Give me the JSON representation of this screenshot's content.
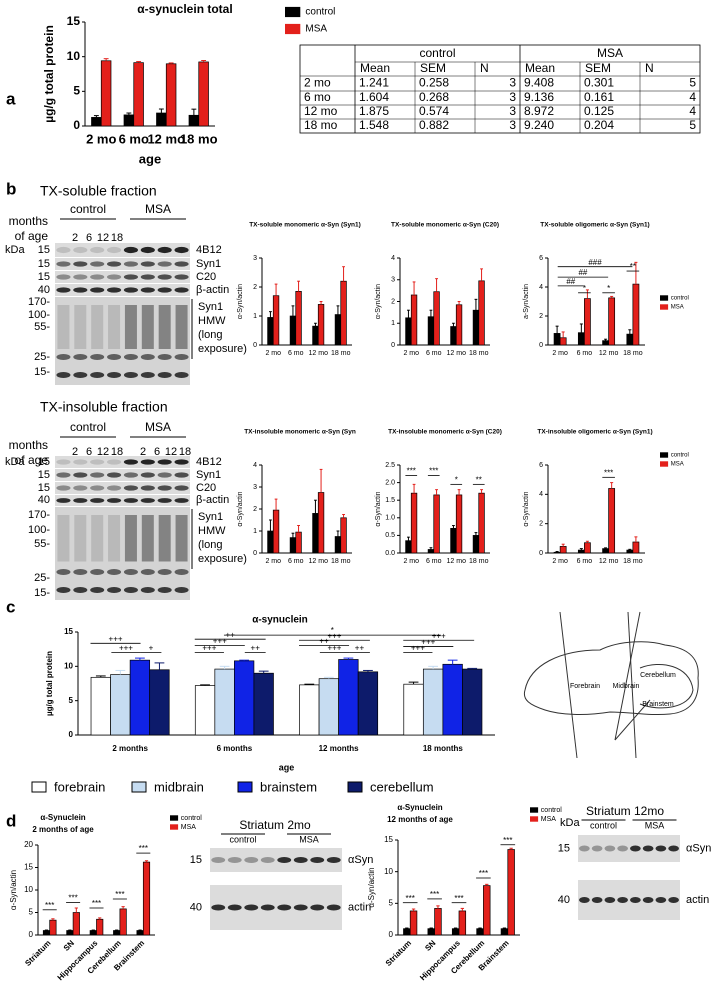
{
  "panel_labels": [
    "a",
    "b",
    "c",
    "d"
  ],
  "chart_data": [
    {
      "type": "bar",
      "title": "α-synuclein total",
      "y_label": "µg/g total protein",
      "x_label": "age",
      "categories": [
        "2 mo",
        "6 mo",
        "12 mo",
        "18 mo"
      ],
      "series": [
        {
          "name": "control",
          "color": "#000000",
          "values": [
            1.241,
            1.604,
            1.875,
            1.548
          ],
          "errors": [
            0.258,
            0.268,
            0.574,
            0.882
          ]
        },
        {
          "name": "MSA",
          "color": "#e3201b",
          "values": [
            9.408,
            9.136,
            8.972,
            9.24
          ],
          "errors": [
            0.301,
            0.161,
            0.125,
            0.204
          ]
        }
      ],
      "ylim": [
        0,
        15
      ],
      "yticks": [
        0,
        5,
        10,
        15
      ],
      "legend": true
    },
    {
      "type": "bar",
      "title": "TX-soluble monomeric α-Syn (Syn1)",
      "y_label": "α-Syn/actin",
      "categories": [
        "2 mo",
        "6 mo",
        "12 mo",
        "18 mo"
      ],
      "series": [
        {
          "name": "control",
          "color": "#000000",
          "values": [
            0.95,
            1.0,
            0.65,
            1.05
          ],
          "errors": [
            0.2,
            0.35,
            0.1,
            0.3
          ]
        },
        {
          "name": "MSA",
          "color": "#e3201b",
          "values": [
            1.7,
            1.85,
            1.4,
            2.2
          ],
          "errors": [
            0.4,
            0.35,
            0.1,
            0.5
          ]
        }
      ],
      "ylim": [
        0,
        3
      ],
      "yticks": [
        0,
        1,
        2,
        3
      ]
    },
    {
      "type": "bar",
      "title": "TX-soluble monomeric α-Syn (C20)",
      "y_label": "α-Syn/actin",
      "categories": [
        "2 mo",
        "6 mo",
        "12 mo",
        "18 mo"
      ],
      "series": [
        {
          "name": "control",
          "color": "#000000",
          "values": [
            1.25,
            1.3,
            0.85,
            1.6
          ],
          "errors": [
            0.35,
            0.3,
            0.15,
            0.5
          ]
        },
        {
          "name": "MSA",
          "color": "#e3201b",
          "values": [
            2.3,
            2.45,
            1.85,
            2.95
          ],
          "errors": [
            0.6,
            0.6,
            0.15,
            0.55
          ]
        }
      ],
      "ylim": [
        0,
        4
      ],
      "yticks": [
        0,
        1,
        2,
        3,
        4
      ]
    },
    {
      "type": "bar",
      "title": "TX-soluble oligomeric α-Syn (Syn1)",
      "y_label": "a-Syn/actin",
      "categories": [
        "2 mo",
        "6 mo",
        "12 mo",
        "18 mo"
      ],
      "series": [
        {
          "name": "control",
          "color": "#000000",
          "values": [
            0.8,
            0.85,
            0.3,
            0.75
          ],
          "errors": [
            0.5,
            0.6,
            0.1,
            0.3
          ]
        },
        {
          "name": "MSA",
          "color": "#e3201b",
          "values": [
            0.5,
            3.2,
            3.25,
            4.2
          ],
          "errors": [
            0.4,
            0.6,
            0.1,
            1.5
          ]
        }
      ],
      "ylim": [
        0,
        6
      ],
      "yticks": [
        0,
        2,
        4,
        6
      ],
      "legend": true,
      "annotations": [
        "###",
        "##",
        "##",
        "*",
        "*",
        "**"
      ]
    },
    {
      "type": "bar",
      "title": "TX-insoluble monomeric α-Syn (Syn",
      "y_label": "α-Syn/actin",
      "categories": [
        "2 mo",
        "6 mo",
        "12 mo",
        "18 mo"
      ],
      "series": [
        {
          "name": "control",
          "color": "#000000",
          "values": [
            1.0,
            0.7,
            1.8,
            0.75
          ],
          "errors": [
            0.5,
            0.2,
            0.6,
            0.25
          ]
        },
        {
          "name": "MSA",
          "color": "#e3201b",
          "values": [
            1.95,
            0.95,
            2.75,
            1.6
          ],
          "errors": [
            0.5,
            0.3,
            1.05,
            0.15
          ]
        }
      ],
      "ylim": [
        0,
        4
      ],
      "yticks": [
        0,
        1,
        2,
        3,
        4
      ]
    },
    {
      "type": "bar",
      "title": "TX-insoluble monomeric α-Syn (C20)",
      "y_label": "α-Syn/actin",
      "categories": [
        "2 mo",
        "6 mo",
        "12 mo",
        "18 mo"
      ],
      "series": [
        {
          "name": "control",
          "color": "#000000",
          "values": [
            0.35,
            0.1,
            0.7,
            0.5
          ],
          "errors": [
            0.1,
            0.05,
            0.08,
            0.08
          ]
        },
        {
          "name": "MSA",
          "color": "#e3201b",
          "values": [
            1.7,
            1.65,
            1.65,
            1.7
          ],
          "errors": [
            0.25,
            0.15,
            0.15,
            0.1
          ]
        }
      ],
      "ylim": [
        0,
        2.5
      ],
      "yticks": [
        {
          "value": 0,
          "label": "0.0"
        },
        {
          "value": 0.5,
          "label": "0.5"
        },
        {
          "value": 1,
          "label": "1.0"
        },
        {
          "value": 1.5,
          "label": "1.5"
        },
        {
          "value": 2,
          "label": "2.0"
        },
        {
          "value": 2.5,
          "label": "2.5"
        }
      ],
      "annotations": [
        "***",
        "***",
        "*",
        "**"
      ]
    },
    {
      "type": "bar",
      "title": "TX-insoluble oligomeric α-Syn (Syn1)",
      "y_label": "α-Syn/actin",
      "categories": [
        "2 mo",
        "6 mo",
        "12 mo",
        "18 mo"
      ],
      "series": [
        {
          "name": "control",
          "color": "#000000",
          "values": [
            0.05,
            0.2,
            0.3,
            0.2
          ],
          "errors": [
            0.05,
            0.1,
            0.05,
            0.05
          ]
        },
        {
          "name": "MSA",
          "color": "#e3201b",
          "values": [
            0.45,
            0.7,
            4.4,
            0.75
          ],
          "errors": [
            0.15,
            0.1,
            0.4,
            0.35
          ]
        }
      ],
      "ylim": [
        0,
        6
      ],
      "yticks": [
        0,
        2,
        4,
        6
      ],
      "legend": true,
      "annotations": [
        "***"
      ]
    },
    {
      "type": "bar",
      "title": "α-synuclein",
      "y_label": "µg/g total protein",
      "x_label": "age",
      "categories": [
        "2 months",
        "6 months",
        "12 months",
        "18 months"
      ],
      "series": [
        {
          "name": "forebrain",
          "color": "#ffffff",
          "values": [
            8.4,
            7.2,
            7.3,
            7.4
          ],
          "errors": [
            0.2,
            0.1,
            0.1,
            0.3
          ]
        },
        {
          "name": "midbrain",
          "color": "#c6dcf1",
          "values": [
            8.8,
            9.6,
            8.2,
            9.6
          ],
          "errors": [
            0.6,
            0.4,
            0.2,
            0.4
          ]
        },
        {
          "name": "brainstem",
          "color": "#1023e6",
          "values": [
            10.9,
            10.8,
            11.0,
            10.3
          ],
          "errors": [
            0.3,
            0.1,
            0.2,
            0.6
          ]
        },
        {
          "name": "cerebellum",
          "color": "#0d1b6b",
          "values": [
            9.5,
            9.0,
            9.2,
            9.6
          ],
          "errors": [
            1.0,
            0.3,
            0.2,
            0.1
          ]
        }
      ],
      "ylim": [
        0,
        15
      ],
      "yticks": [
        0,
        5,
        10,
        15
      ],
      "annotations": [
        "+++",
        "+++",
        "+",
        "++",
        "+++",
        "+++",
        "++",
        "*",
        "+++",
        "++",
        "+++",
        "++",
        "+++",
        "+++",
        "+++"
      ]
    },
    {
      "type": "bar",
      "title": "α-Synuclein",
      "subtitle": "2 months of age",
      "y_label": "α-Syn/actin",
      "categories": [
        "Striatum",
        "SN",
        "Hippocampus",
        "Cerebellum",
        "Brainstem"
      ],
      "series": [
        {
          "name": "control",
          "color": "#000000",
          "values": [
            1.0,
            1.0,
            1.0,
            1.0,
            1.0
          ],
          "errors": [
            0.1,
            0.1,
            0.1,
            0.1,
            0.1
          ]
        },
        {
          "name": "MSA",
          "color": "#e3201b",
          "values": [
            3.3,
            5.0,
            3.5,
            5.8,
            16.2
          ],
          "errors": [
            0.3,
            1.0,
            0.3,
            0.5,
            0.3
          ]
        }
      ],
      "ylim": [
        0,
        20
      ],
      "yticks": [
        0,
        5,
        10,
        15,
        20
      ],
      "legend": true,
      "annotations": [
        "***",
        "***",
        "***",
        "***",
        "***"
      ]
    },
    {
      "type": "bar",
      "title": "α-Synuclein",
      "subtitle": "12 months of age",
      "y_label": "α-Syn/actin",
      "categories": [
        "Striatum",
        "SN",
        "Hippocampus",
        "Cerebellum",
        "Brainstem"
      ],
      "series": [
        {
          "name": "control",
          "color": "#000000",
          "values": [
            1.0,
            1.0,
            1.0,
            1.0,
            1.0
          ],
          "errors": [
            0.1,
            0.1,
            0.1,
            0.1,
            0.1
          ]
        },
        {
          "name": "MSA",
          "color": "#e3201b",
          "values": [
            3.8,
            4.2,
            3.8,
            7.8,
            13.5
          ],
          "errors": [
            0.3,
            0.4,
            0.4,
            0.2,
            0.2
          ]
        }
      ],
      "ylim": [
        0,
        15
      ],
      "yticks": [
        0,
        5,
        10,
        15
      ],
      "legend": true,
      "annotations": [
        "***",
        "***",
        "***",
        "***",
        "***"
      ]
    }
  ],
  "table": {
    "header": [
      "control",
      "MSA"
    ],
    "columns": [
      "Mean",
      "SEM",
      "N",
      "Mean",
      "SEM",
      "N"
    ],
    "rows": [
      [
        "2 mo",
        "1.241",
        "0.258",
        "3",
        "9.408",
        "0.301",
        "5"
      ],
      [
        "6 mo",
        "1.604",
        "0.268",
        "3",
        "9.136",
        "0.161",
        "4"
      ],
      [
        "12 mo",
        "1.875",
        "0.574",
        "3",
        "8.972",
        "0.125",
        "4"
      ],
      [
        "18 mo",
        "1.548",
        "0.882",
        "3",
        "9.240",
        "0.204",
        "5"
      ]
    ]
  },
  "blots": [
    {
      "title": "TX-soluble fraction",
      "months_label": [
        "months",
        "of age"
      ],
      "groups": [
        "control",
        "MSA"
      ],
      "lanes": [
        "2",
        "6",
        "12",
        "18"
      ],
      "kda": "kDa",
      "markers": [
        "15",
        "15",
        "15",
        "40",
        "170-",
        "100-",
        "55-",
        "25-",
        "15-"
      ],
      "bands": [
        "4B12",
        "Syn1",
        "C20",
        "β-actin"
      ],
      "hmw": [
        "Syn1",
        "HMW",
        "(long",
        "exposure)"
      ]
    },
    {
      "title": "TX-insoluble fraction",
      "months_label": [
        "months",
        "of age"
      ],
      "groups": [
        "control",
        "MSA"
      ],
      "lanes": [
        "2",
        "6",
        "12",
        "18",
        "2",
        "6",
        "12",
        "18"
      ],
      "kda": "kDa",
      "markers": [
        "15",
        "15",
        "15",
        "40",
        "170-",
        "100-",
        "55-",
        "25-",
        "15-"
      ],
      "bands": [
        "4B12",
        "Syn1",
        "C20",
        "β-actin"
      ],
      "hmw": [
        "Syn1",
        "HMW",
        "(long",
        "exposure)"
      ]
    },
    {
      "title": "Striatum 2mo",
      "groups": [
        "control",
        "MSA"
      ],
      "markers": [
        "15",
        "40"
      ],
      "bands": [
        "αSyn",
        "actin"
      ]
    },
    {
      "title": "Striatum 12mo",
      "kda": "kDa",
      "groups": [
        "control",
        "MSA"
      ],
      "markers": [
        "15",
        "40"
      ],
      "bands": [
        "αSyn",
        "actin"
      ]
    }
  ],
  "brain_regions": [
    "Forebrain",
    "Midbrain",
    "Cerebellum",
    "Brainstem"
  ]
}
